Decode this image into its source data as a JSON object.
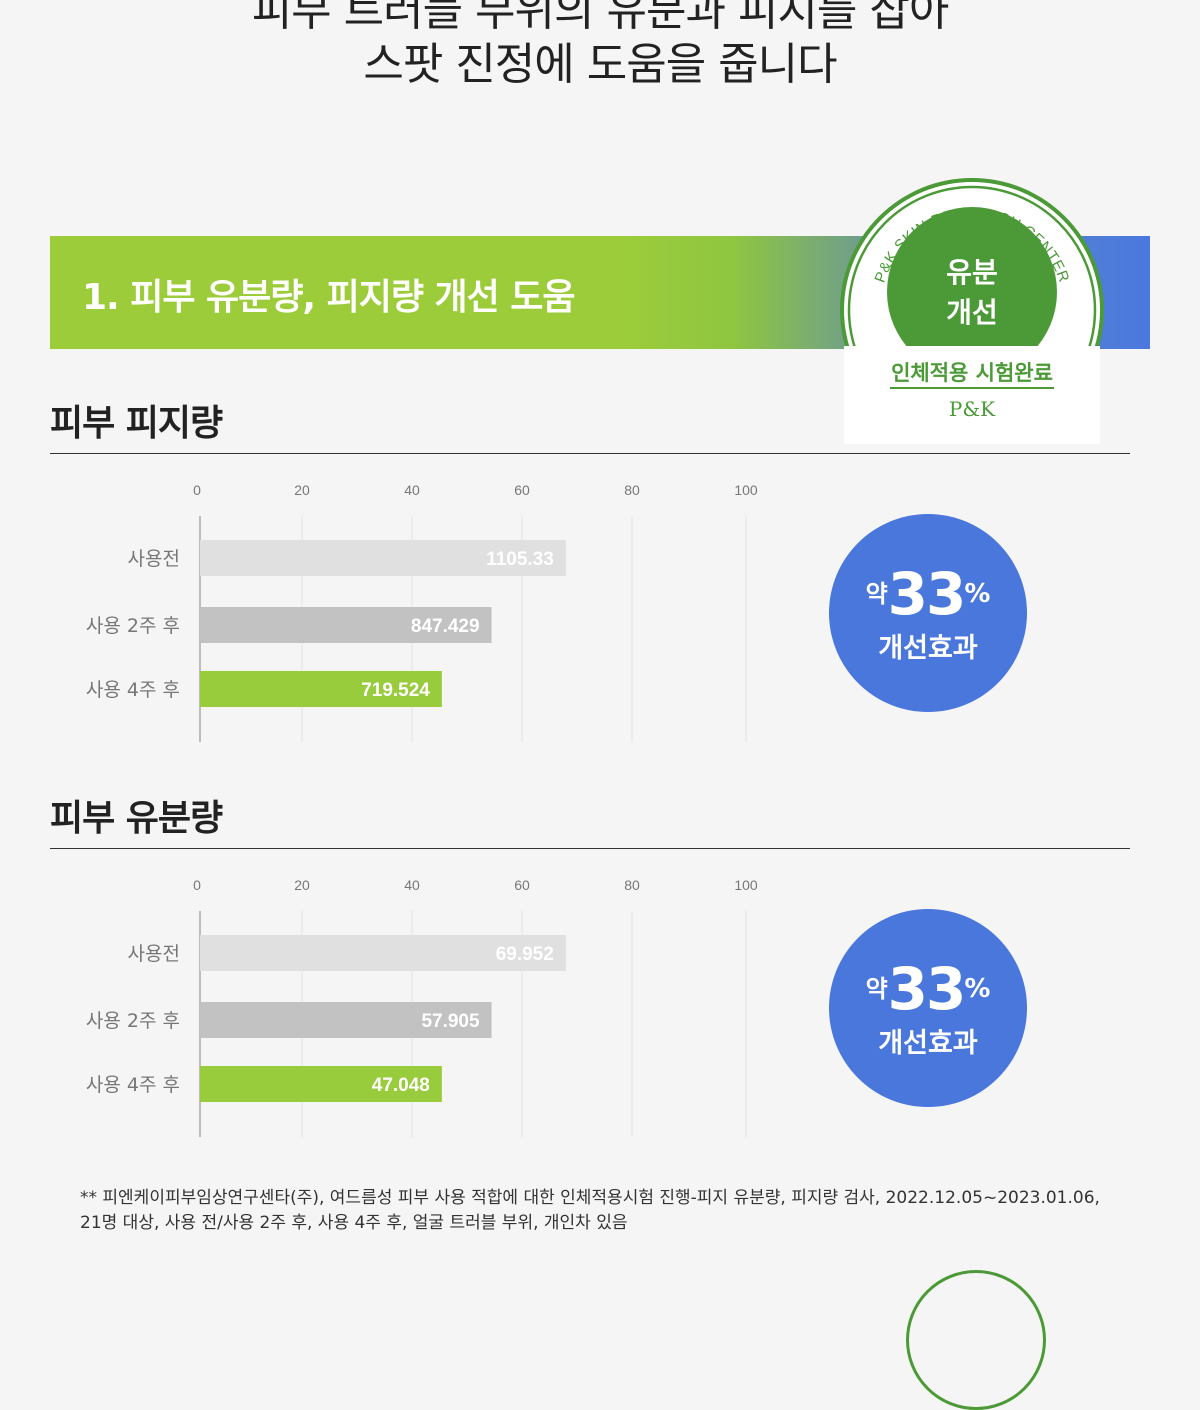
{
  "header": {
    "cut_line": "피부 트러블 부위의 유분과 피지를 잡아",
    "main_line": "스팟 진정에 도움을 줍니다"
  },
  "banner": {
    "title": "1. 피부 유분량, 피지량 개선 도움"
  },
  "seal": {
    "ring_text": "P&K SKIN RESEARCH CENTER",
    "center_line1": "유분",
    "center_line2": "개선",
    "caption": "인체적용 시험완료",
    "logo": "P&K",
    "colors": {
      "green": "#4b9a37",
      "ring": "#ffffff"
    }
  },
  "charts": [
    {
      "section_title": "피부 피지량",
      "badge": {
        "prefix": "약",
        "number": "33",
        "unit": "%",
        "label": "개선효과"
      }
    },
    {
      "section_title": "피부 유분량",
      "badge": {
        "prefix": "약",
        "number": "33",
        "unit": "%",
        "label": "개선효과"
      }
    }
  ],
  "chart_data": [
    {
      "type": "bar",
      "orientation": "horizontal",
      "title": "피부 피지량",
      "categories": [
        "사용전",
        "사용 2주 후",
        "사용 4주 후"
      ],
      "values": [
        1105.33,
        847.429,
        719.524
      ],
      "value_labels": [
        "1105.33",
        "847.429",
        "719.524"
      ],
      "bar_scale_percent": [
        67,
        53.4,
        44.3
      ],
      "xticks": [
        "0",
        "20",
        "40",
        "60",
        "80",
        "100"
      ],
      "xlim": [
        0,
        100
      ],
      "grid": true,
      "colors": [
        "#e0e0e0",
        "#c2c2c2",
        "#99cc3c"
      ]
    },
    {
      "type": "bar",
      "orientation": "horizontal",
      "title": "피부 유분량",
      "categories": [
        "사용전",
        "사용 2주 후",
        "사용 4주 후"
      ],
      "values": [
        69.952,
        57.905,
        47.048
      ],
      "value_labels": [
        "69.952",
        "57.905",
        "47.048"
      ],
      "bar_scale_percent": [
        67,
        53.4,
        44.3
      ],
      "xticks": [
        "0",
        "20",
        "40",
        "60",
        "80",
        "100"
      ],
      "xlim": [
        0,
        100
      ],
      "grid": true,
      "colors": [
        "#e0e0e0",
        "#c2c2c2",
        "#99cc3c"
      ]
    }
  ],
  "footnote": {
    "line1": "** 피엔케이피부임상연구센타(주), 여드름성 피부 사용 적합에 대한 인체적용시험 진행-피지 유분량, 피지량 검사, 2022.12.05~2023.01.06,",
    "line2": "21명 대상, 사용 전/사용 2주 후, 사용 4주 후, 얼굴 트러블 부위, 개인차 있음"
  }
}
